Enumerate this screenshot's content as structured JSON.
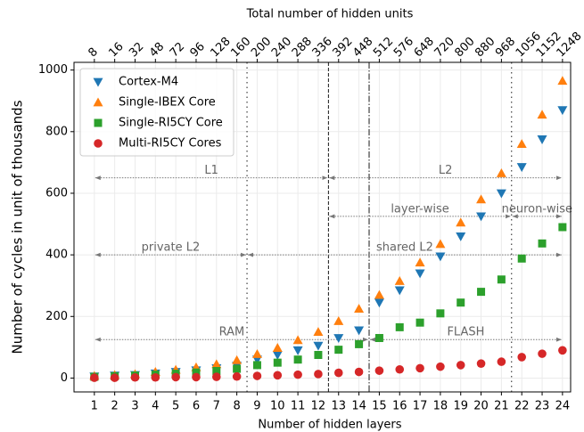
{
  "chart_data": {
    "type": "scatter",
    "x_label": "Number of hidden layers",
    "y_label": "Number of cycles in unit of thousands",
    "top_label": "Total number of hidden units",
    "x": [
      1,
      2,
      3,
      4,
      5,
      6,
      7,
      8,
      9,
      10,
      11,
      12,
      13,
      14,
      15,
      16,
      17,
      18,
      19,
      20,
      21,
      22,
      23,
      24
    ],
    "top_tick_labels": [
      8,
      16,
      32,
      48,
      72,
      96,
      128,
      160,
      200,
      240,
      288,
      336,
      392,
      448,
      512,
      576,
      648,
      720,
      800,
      880,
      968,
      1056,
      1152,
      1248
    ],
    "xlim": [
      0,
      24.4
    ],
    "xticks": [
      1,
      2,
      3,
      4,
      5,
      6,
      7,
      8,
      9,
      10,
      11,
      12,
      13,
      14,
      15,
      16,
      17,
      18,
      19,
      20,
      21,
      22,
      23,
      24
    ],
    "ylim": [
      -45,
      1025
    ],
    "yticks": [
      0,
      200,
      400,
      600,
      800,
      1000
    ],
    "grid": true,
    "legend": "upper left",
    "series": [
      {
        "name": "Cortex-M4",
        "color": "#1f77b4",
        "marker": "triangle-down",
        "values": [
          5,
          8,
          10,
          15,
          20,
          25,
          32,
          40,
          60,
          75,
          90,
          105,
          130,
          155,
          245,
          285,
          340,
          395,
          460,
          525,
          600,
          685,
          775,
          870
        ]
      },
      {
        "name": "Single-IBEX Core",
        "color": "#ff7f0e",
        "marker": "triangle-up",
        "values": [
          7,
          10,
          13,
          20,
          27,
          35,
          45,
          58,
          78,
          98,
          123,
          150,
          185,
          225,
          270,
          315,
          375,
          435,
          505,
          580,
          665,
          760,
          855,
          965
        ]
      },
      {
        "name": "Single-RI5CY Core",
        "color": "#2ca02c",
        "marker": "square",
        "values": [
          4,
          6,
          8,
          11,
          14,
          18,
          23,
          30,
          42,
          50,
          60,
          75,
          92,
          110,
          130,
          165,
          180,
          210,
          245,
          280,
          320,
          388,
          437,
          490
        ]
      },
      {
        "name": "Multi-RI5CY Cores",
        "color": "#d62728",
        "marker": "circle",
        "values": [
          1,
          1,
          2,
          2,
          3,
          3,
          4,
          5,
          7,
          9,
          11,
          13,
          17,
          20,
          24,
          28,
          32,
          37,
          42,
          47,
          53,
          68,
          79,
          90
        ]
      }
    ],
    "vlines": [
      {
        "x": 8.5,
        "style": "dotted"
      },
      {
        "x": 12.5,
        "style": "dashed"
      },
      {
        "x": 14.5,
        "style": "dashdot"
      },
      {
        "x": 21.5,
        "style": "dotted"
      }
    ],
    "annotations": [
      {
        "text": "L1",
        "y": 650,
        "x0": 1,
        "x1": 12.5
      },
      {
        "text": "L2",
        "y": 650,
        "x0": 12.5,
        "x1": 24
      },
      {
        "text": "layer-wise",
        "y": 525,
        "x0": 12.5,
        "x1": 21.5
      },
      {
        "text": "neuron-wise",
        "y": 525,
        "x0": 21.5,
        "x1": 24
      },
      {
        "text": "private L2",
        "y": 400,
        "x0": 1,
        "x1": 8.5
      },
      {
        "text": "shared L2",
        "y": 400,
        "x0": 8.5,
        "x1": 24
      },
      {
        "text": "RAM",
        "y": 125,
        "x0": 1,
        "x1": 14.5
      },
      {
        "text": "FLASH",
        "y": 125,
        "x0": 14.5,
        "x1": 24
      }
    ]
  }
}
